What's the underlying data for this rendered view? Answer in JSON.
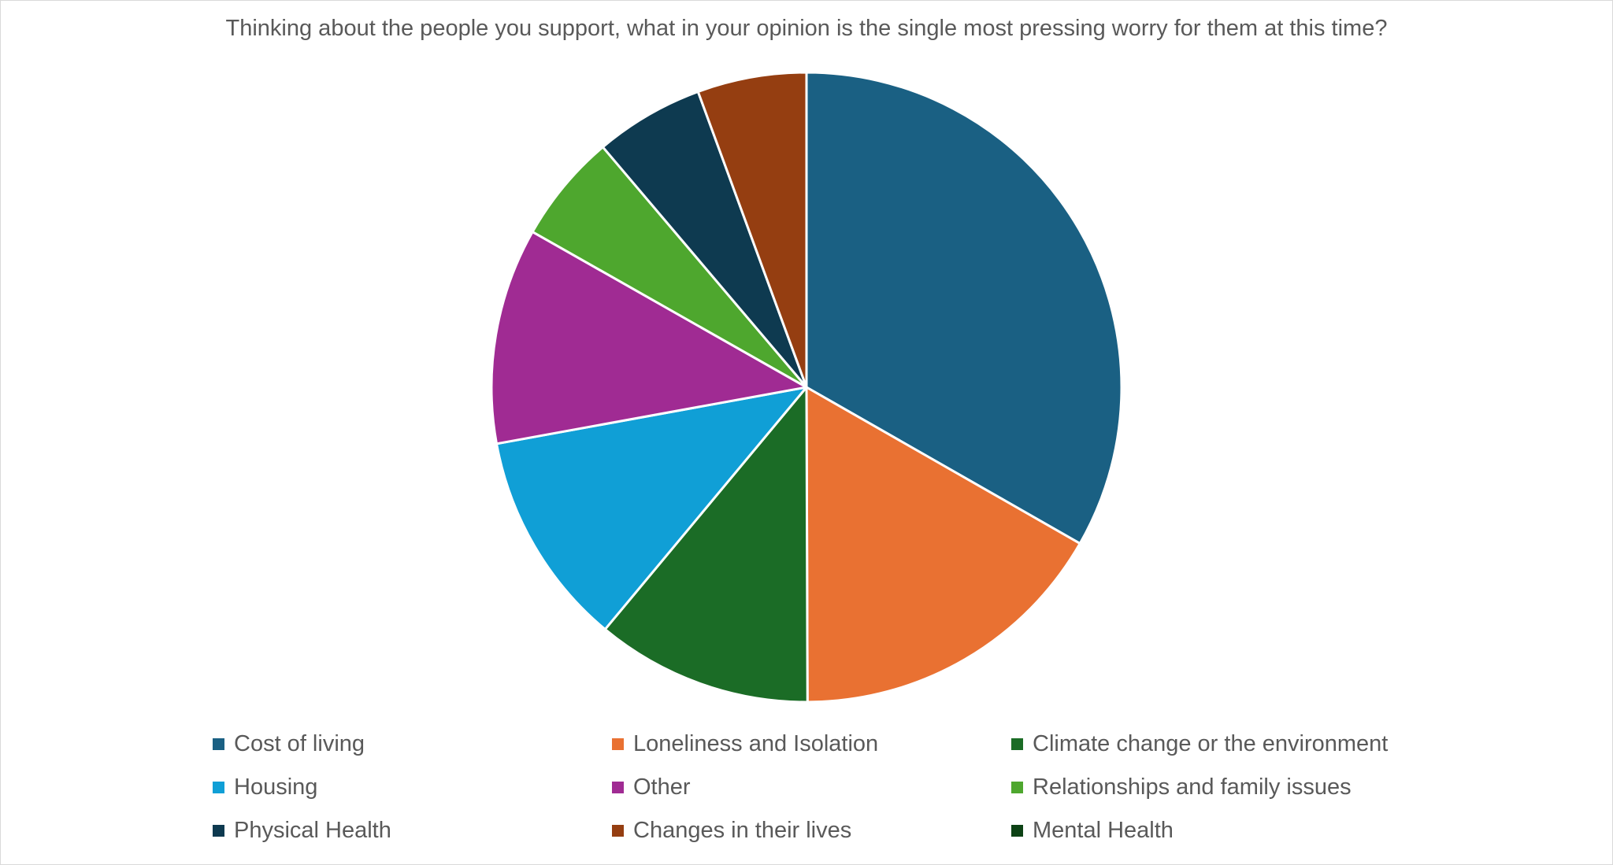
{
  "chart_data": {
    "type": "pie",
    "title": "Thinking about the people you support, what in your opinion is the single most pressing worry for them at this time?",
    "categories": [
      "Cost of living",
      "Loneliness and Isolation",
      "Climate change or the environment",
      "Housing",
      "Other",
      "Relationships and family issues",
      "Physical Health",
      "Changes in their lives",
      "Mental Health"
    ],
    "values": [
      33.3,
      16.7,
      11.1,
      11.1,
      11.1,
      5.6,
      5.6,
      5.6,
      0
    ],
    "colors": [
      "#1a6083",
      "#e97132",
      "#1b6c26",
      "#109fd6",
      "#a02b93",
      "#4ea72e",
      "#0e3a50",
      "#953e11",
      "#0d4215"
    ],
    "legend_position": "bottom"
  }
}
